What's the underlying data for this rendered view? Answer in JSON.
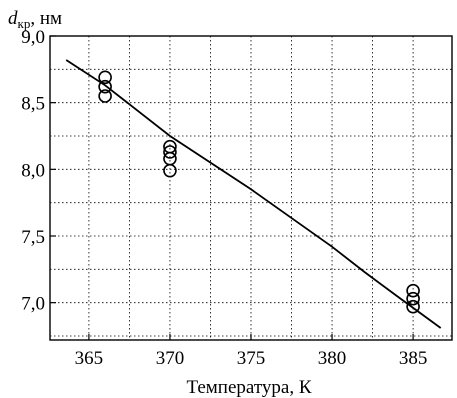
{
  "chart_data": {
    "type": "scatter",
    "title": "",
    "xlabel": "Температура, К",
    "ylabel": {
      "symbol": "d",
      "subscript": "кр",
      "unit": ", нм"
    },
    "xlim": [
      362.6,
      387.4
    ],
    "ylim": [
      6.72,
      9.0
    ],
    "x_ticks": [
      365,
      370,
      375,
      380,
      385
    ],
    "x_tick_labels": [
      "365",
      "370",
      "375",
      "380",
      "385"
    ],
    "y_ticks": [
      7.0,
      7.5,
      8.0,
      8.5,
      9.0
    ],
    "y_tick_labels": [
      "7,0",
      "7,5",
      "8,0",
      "8,5",
      "9,0"
    ],
    "grid": true,
    "grid_style": "dotted",
    "series": [
      {
        "type": "scatter",
        "marker": "open-circle",
        "points": [
          [
            366,
            8.69
          ],
          [
            366,
            8.62
          ],
          [
            366,
            8.55
          ],
          [
            370,
            8.17
          ],
          [
            370,
            8.13
          ],
          [
            370,
            8.08
          ],
          [
            370,
            7.99
          ],
          [
            385,
            7.09
          ],
          [
            385,
            7.03
          ],
          [
            385,
            6.97
          ]
        ]
      },
      {
        "type": "line",
        "points": [
          [
            363.6,
            8.82
          ],
          [
            366,
            8.63
          ],
          [
            370,
            8.25
          ],
          [
            375,
            7.85
          ],
          [
            380,
            7.42
          ],
          [
            382,
            7.23
          ],
          [
            384,
            7.05
          ],
          [
            386.7,
            6.81
          ]
        ]
      }
    ]
  }
}
